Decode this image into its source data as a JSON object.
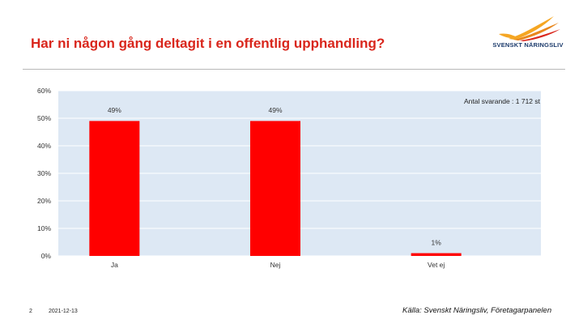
{
  "header": {
    "title": "Har ni någon gång deltagit i en offentlig upphandling?",
    "logo_text": "SVENSKT NÄRINGSLIV"
  },
  "colors": {
    "title": "#d9261c",
    "bar": "#ff0000",
    "plot_bg": "#dde8f4",
    "gridline": "#ffffff",
    "logo_accent": "#f5a623",
    "logo_text": "#1b3a6b"
  },
  "chart_data": {
    "type": "bar",
    "categories": [
      "Ja",
      "Nej",
      "Vet ej"
    ],
    "values": [
      49,
      49,
      1
    ],
    "data_labels": [
      "49%",
      "49%",
      "1%"
    ],
    "yticks": [
      0,
      10,
      20,
      30,
      40,
      50,
      60
    ],
    "ytick_labels": [
      "0%",
      "10%",
      "20%",
      "30%",
      "40%",
      "50%",
      "60%"
    ],
    "ylim": [
      0,
      60
    ],
    "grid": true,
    "annotation": "Antal svarande : 1 712 st",
    "title": "",
    "xlabel": "",
    "ylabel": ""
  },
  "footer": {
    "page_number": "2",
    "date": "2021-12-13",
    "source": "Källa: Svenskt Näringsliv, Företagarpanelen"
  }
}
